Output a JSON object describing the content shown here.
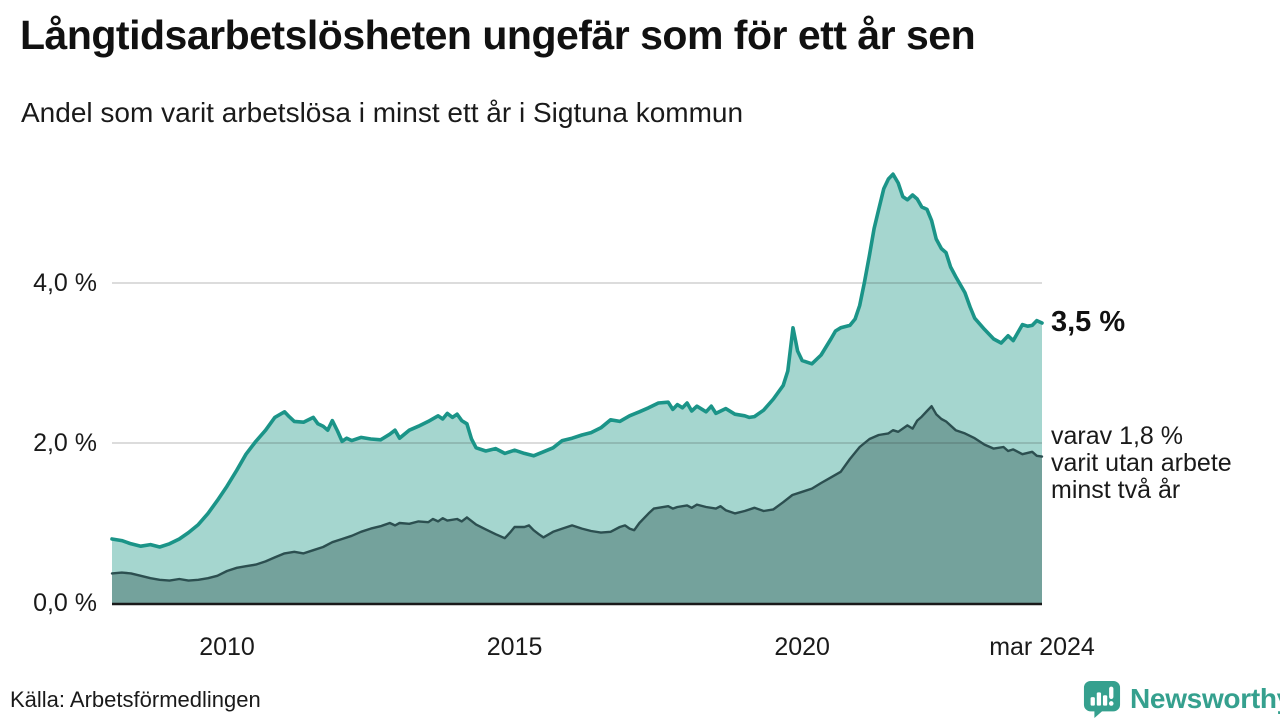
{
  "page": {
    "title": "Långtidsarbetslösheten ungefär som för ett år sen",
    "subtitle": "Andel som varit arbetslösa i minst ett år i Sigtuna kommun"
  },
  "footer": {
    "source": "Källa: Arbetsförmedlingen"
  },
  "logo": {
    "text": "Newsworthy",
    "color": "#35a08e"
  },
  "chart_data": {
    "type": "area",
    "title": "Långtidsarbetslösheten ungefär som för ett år sen",
    "subtitle": "Andel som varit arbetslösa i minst ett år i Sigtuna kommun",
    "unit": "%",
    "x_range": [
      2008,
      2024.17
    ],
    "ylim": [
      0,
      5.6
    ],
    "grid": {
      "color": "rgba(40,40,40,0.16)",
      "baseline_color": "#1a1a1a"
    },
    "x_axis": {
      "ticks": [
        {
          "label": "2010",
          "t": 2010
        },
        {
          "label": "2015",
          "t": 2015
        },
        {
          "label": "2020",
          "t": 2020
        },
        {
          "label": "mar 2024",
          "t": 2024.17
        }
      ]
    },
    "y_axis": {
      "ticks": [
        {
          "label": "0,0 %",
          "v": 0
        },
        {
          "label": "2,0 %",
          "v": 2
        },
        {
          "label": "4,0 %",
          "v": 4
        }
      ]
    },
    "annotations": {
      "end_total": "3,5 %",
      "end_two_year_lines": [
        "varav 1,8 %",
        "varit utan arbete",
        "minst två år"
      ]
    },
    "series": [
      {
        "name": "Andel arbetslösa i minst ett år",
        "end_value_label": "3,5 %",
        "line_color": "#1b9488",
        "fill_color": "#a5d6cf",
        "line_width": 3.6,
        "points": [
          [
            2008.0,
            0.8
          ],
          [
            2008.17,
            0.78
          ],
          [
            2008.33,
            0.74
          ],
          [
            2008.5,
            0.71
          ],
          [
            2008.67,
            0.73
          ],
          [
            2008.83,
            0.7
          ],
          [
            2009.0,
            0.74
          ],
          [
            2009.17,
            0.8
          ],
          [
            2009.33,
            0.88
          ],
          [
            2009.5,
            0.98
          ],
          [
            2009.67,
            1.12
          ],
          [
            2009.83,
            1.28
          ],
          [
            2010.0,
            1.46
          ],
          [
            2010.17,
            1.66
          ],
          [
            2010.33,
            1.86
          ],
          [
            2010.5,
            2.02
          ],
          [
            2010.67,
            2.16
          ],
          [
            2010.83,
            2.32
          ],
          [
            2011.0,
            2.39
          ],
          [
            2011.08,
            2.33
          ],
          [
            2011.17,
            2.27
          ],
          [
            2011.33,
            2.26
          ],
          [
            2011.5,
            2.32
          ],
          [
            2011.58,
            2.24
          ],
          [
            2011.67,
            2.21
          ],
          [
            2011.75,
            2.16
          ],
          [
            2011.83,
            2.28
          ],
          [
            2011.92,
            2.15
          ],
          [
            2012.0,
            2.02
          ],
          [
            2012.08,
            2.06
          ],
          [
            2012.17,
            2.03
          ],
          [
            2012.33,
            2.07
          ],
          [
            2012.5,
            2.05
          ],
          [
            2012.67,
            2.04
          ],
          [
            2012.83,
            2.11
          ],
          [
            2012.92,
            2.16
          ],
          [
            2013.0,
            2.06
          ],
          [
            2013.17,
            2.16
          ],
          [
            2013.33,
            2.21
          ],
          [
            2013.5,
            2.27
          ],
          [
            2013.67,
            2.34
          ],
          [
            2013.75,
            2.3
          ],
          [
            2013.83,
            2.37
          ],
          [
            2013.92,
            2.32
          ],
          [
            2014.0,
            2.36
          ],
          [
            2014.08,
            2.28
          ],
          [
            2014.17,
            2.24
          ],
          [
            2014.25,
            2.05
          ],
          [
            2014.33,
            1.94
          ],
          [
            2014.5,
            1.9
          ],
          [
            2014.67,
            1.93
          ],
          [
            2014.83,
            1.87
          ],
          [
            2015.0,
            1.91
          ],
          [
            2015.17,
            1.87
          ],
          [
            2015.33,
            1.84
          ],
          [
            2015.5,
            1.89
          ],
          [
            2015.67,
            1.94
          ],
          [
            2015.83,
            2.03
          ],
          [
            2016.0,
            2.06
          ],
          [
            2016.17,
            2.1
          ],
          [
            2016.33,
            2.13
          ],
          [
            2016.5,
            2.19
          ],
          [
            2016.67,
            2.29
          ],
          [
            2016.83,
            2.27
          ],
          [
            2017.0,
            2.34
          ],
          [
            2017.17,
            2.39
          ],
          [
            2017.33,
            2.44
          ],
          [
            2017.5,
            2.5
          ],
          [
            2017.67,
            2.51
          ],
          [
            2017.75,
            2.42
          ],
          [
            2017.83,
            2.48
          ],
          [
            2017.92,
            2.44
          ],
          [
            2018.0,
            2.5
          ],
          [
            2018.08,
            2.4
          ],
          [
            2018.17,
            2.46
          ],
          [
            2018.33,
            2.39
          ],
          [
            2018.42,
            2.46
          ],
          [
            2018.5,
            2.37
          ],
          [
            2018.67,
            2.43
          ],
          [
            2018.83,
            2.36
          ],
          [
            2019.0,
            2.34
          ],
          [
            2019.08,
            2.32
          ],
          [
            2019.17,
            2.33
          ],
          [
            2019.33,
            2.41
          ],
          [
            2019.5,
            2.55
          ],
          [
            2019.67,
            2.72
          ],
          [
            2019.75,
            2.9
          ],
          [
            2019.84,
            3.44
          ],
          [
            2019.92,
            3.15
          ],
          [
            2020.0,
            3.03
          ],
          [
            2020.17,
            2.99
          ],
          [
            2020.33,
            3.1
          ],
          [
            2020.5,
            3.3
          ],
          [
            2020.58,
            3.4
          ],
          [
            2020.67,
            3.44
          ],
          [
            2020.83,
            3.47
          ],
          [
            2020.92,
            3.55
          ],
          [
            2021.0,
            3.72
          ],
          [
            2021.08,
            4.0
          ],
          [
            2021.17,
            4.35
          ],
          [
            2021.25,
            4.68
          ],
          [
            2021.33,
            4.92
          ],
          [
            2021.42,
            5.18
          ],
          [
            2021.5,
            5.3
          ],
          [
            2021.58,
            5.36
          ],
          [
            2021.67,
            5.25
          ],
          [
            2021.75,
            5.08
          ],
          [
            2021.83,
            5.04
          ],
          [
            2021.92,
            5.1
          ],
          [
            2022.0,
            5.05
          ],
          [
            2022.08,
            4.95
          ],
          [
            2022.17,
            4.92
          ],
          [
            2022.25,
            4.78
          ],
          [
            2022.33,
            4.55
          ],
          [
            2022.42,
            4.43
          ],
          [
            2022.5,
            4.38
          ],
          [
            2022.58,
            4.2
          ],
          [
            2022.67,
            4.08
          ],
          [
            2022.83,
            3.88
          ],
          [
            2022.92,
            3.7
          ],
          [
            2023.0,
            3.56
          ],
          [
            2023.17,
            3.42
          ],
          [
            2023.33,
            3.3
          ],
          [
            2023.46,
            3.25
          ],
          [
            2023.58,
            3.34
          ],
          [
            2023.67,
            3.28
          ],
          [
            2023.75,
            3.38
          ],
          [
            2023.83,
            3.48
          ],
          [
            2023.92,
            3.46
          ],
          [
            2024.0,
            3.47
          ],
          [
            2024.08,
            3.53
          ],
          [
            2024.17,
            3.5
          ]
        ]
      },
      {
        "name": "varav utan arbete minst två år",
        "end_value_label": "varav 1,8 %",
        "line_color": "#2c4f50",
        "fill_color": "#74a29c",
        "line_width": 2.4,
        "points": [
          [
            2008.0,
            0.37
          ],
          [
            2008.17,
            0.38
          ],
          [
            2008.33,
            0.37
          ],
          [
            2008.5,
            0.34
          ],
          [
            2008.67,
            0.31
          ],
          [
            2008.83,
            0.29
          ],
          [
            2009.0,
            0.28
          ],
          [
            2009.17,
            0.3
          ],
          [
            2009.33,
            0.28
          ],
          [
            2009.5,
            0.29
          ],
          [
            2009.67,
            0.31
          ],
          [
            2009.83,
            0.34
          ],
          [
            2010.0,
            0.4
          ],
          [
            2010.17,
            0.44
          ],
          [
            2010.33,
            0.46
          ],
          [
            2010.5,
            0.48
          ],
          [
            2010.67,
            0.52
          ],
          [
            2010.83,
            0.57
          ],
          [
            2011.0,
            0.62
          ],
          [
            2011.17,
            0.64
          ],
          [
            2011.33,
            0.62
          ],
          [
            2011.5,
            0.66
          ],
          [
            2011.67,
            0.7
          ],
          [
            2011.83,
            0.76
          ],
          [
            2012.0,
            0.8
          ],
          [
            2012.17,
            0.84
          ],
          [
            2012.33,
            0.89
          ],
          [
            2012.5,
            0.93
          ],
          [
            2012.67,
            0.96
          ],
          [
            2012.83,
            1.0
          ],
          [
            2012.92,
            0.97
          ],
          [
            2013.0,
            1.0
          ],
          [
            2013.17,
            0.99
          ],
          [
            2013.33,
            1.02
          ],
          [
            2013.5,
            1.01
          ],
          [
            2013.58,
            1.05
          ],
          [
            2013.67,
            1.02
          ],
          [
            2013.75,
            1.06
          ],
          [
            2013.83,
            1.03
          ],
          [
            2014.0,
            1.05
          ],
          [
            2014.08,
            1.02
          ],
          [
            2014.17,
            1.07
          ],
          [
            2014.33,
            0.98
          ],
          [
            2014.5,
            0.92
          ],
          [
            2014.67,
            0.86
          ],
          [
            2014.83,
            0.81
          ],
          [
            2014.92,
            0.88
          ],
          [
            2015.0,
            0.95
          ],
          [
            2015.17,
            0.95
          ],
          [
            2015.25,
            0.97
          ],
          [
            2015.33,
            0.91
          ],
          [
            2015.42,
            0.86
          ],
          [
            2015.5,
            0.82
          ],
          [
            2015.67,
            0.89
          ],
          [
            2015.83,
            0.93
          ],
          [
            2016.0,
            0.97
          ],
          [
            2016.17,
            0.93
          ],
          [
            2016.33,
            0.9
          ],
          [
            2016.5,
            0.88
          ],
          [
            2016.67,
            0.89
          ],
          [
            2016.83,
            0.95
          ],
          [
            2016.92,
            0.97
          ],
          [
            2017.0,
            0.93
          ],
          [
            2017.08,
            0.91
          ],
          [
            2017.17,
            1.0
          ],
          [
            2017.33,
            1.12
          ],
          [
            2017.42,
            1.18
          ],
          [
            2017.5,
            1.19
          ],
          [
            2017.67,
            1.21
          ],
          [
            2017.75,
            1.18
          ],
          [
            2017.83,
            1.2
          ],
          [
            2018.0,
            1.22
          ],
          [
            2018.08,
            1.19
          ],
          [
            2018.17,
            1.23
          ],
          [
            2018.33,
            1.2
          ],
          [
            2018.5,
            1.18
          ],
          [
            2018.58,
            1.21
          ],
          [
            2018.67,
            1.16
          ],
          [
            2018.83,
            1.12
          ],
          [
            2019.0,
            1.15
          ],
          [
            2019.17,
            1.19
          ],
          [
            2019.33,
            1.15
          ],
          [
            2019.5,
            1.17
          ],
          [
            2019.67,
            1.26
          ],
          [
            2019.83,
            1.35
          ],
          [
            2020.0,
            1.39
          ],
          [
            2020.17,
            1.43
          ],
          [
            2020.33,
            1.5
          ],
          [
            2020.5,
            1.57
          ],
          [
            2020.67,
            1.64
          ],
          [
            2020.83,
            1.8
          ],
          [
            2020.92,
            1.88
          ],
          [
            2021.0,
            1.95
          ],
          [
            2021.17,
            2.05
          ],
          [
            2021.33,
            2.1
          ],
          [
            2021.5,
            2.12
          ],
          [
            2021.58,
            2.16
          ],
          [
            2021.67,
            2.14
          ],
          [
            2021.83,
            2.22
          ],
          [
            2021.92,
            2.18
          ],
          [
            2022.0,
            2.28
          ],
          [
            2022.08,
            2.33
          ],
          [
            2022.17,
            2.4
          ],
          [
            2022.25,
            2.46
          ],
          [
            2022.33,
            2.36
          ],
          [
            2022.42,
            2.3
          ],
          [
            2022.5,
            2.27
          ],
          [
            2022.67,
            2.16
          ],
          [
            2022.83,
            2.12
          ],
          [
            2023.0,
            2.06
          ],
          [
            2023.17,
            1.98
          ],
          [
            2023.33,
            1.93
          ],
          [
            2023.5,
            1.95
          ],
          [
            2023.58,
            1.9
          ],
          [
            2023.67,
            1.92
          ],
          [
            2023.83,
            1.86
          ],
          [
            2024.0,
            1.89
          ],
          [
            2024.08,
            1.84
          ],
          [
            2024.17,
            1.83
          ]
        ]
      }
    ]
  }
}
